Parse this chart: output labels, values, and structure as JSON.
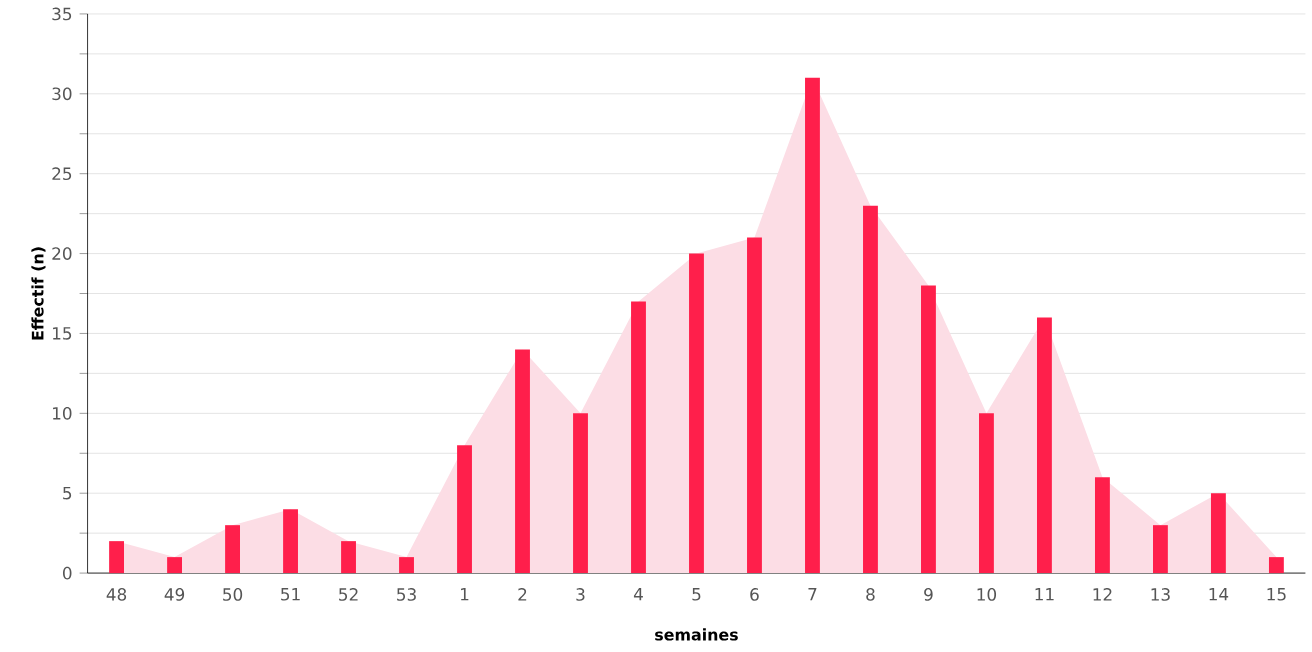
{
  "chart_data": {
    "type": "bar",
    "xlabel": "semaines",
    "ylabel": "Effectif (n)",
    "categories": [
      "48",
      "49",
      "50",
      "51",
      "52",
      "53",
      "1",
      "2",
      "3",
      "4",
      "5",
      "6",
      "7",
      "8",
      "9",
      "10",
      "11",
      "12",
      "13",
      "14",
      "15"
    ],
    "series": [
      {
        "type": "area",
        "color": "#fcdde5",
        "values": [
          2,
          1,
          3,
          4,
          2,
          1,
          8,
          14,
          10,
          17,
          20,
          21,
          31,
          23,
          18,
          10,
          16,
          6,
          3,
          5,
          1
        ]
      },
      {
        "color": "#ff1f4b",
        "values": [
          2,
          1,
          3,
          4,
          2,
          1,
          8,
          14,
          10,
          17,
          20,
          21,
          31,
          23,
          18,
          10,
          16,
          6,
          3,
          5,
          1
        ]
      }
    ],
    "ylim": [
      0,
      35
    ],
    "yticks": [
      0,
      {
        "value": 2.5,
        "label": null
      },
      5,
      {
        "value": 7.5,
        "label": null
      },
      10,
      {
        "value": 12.5,
        "label": null
      },
      15,
      {
        "value": 17.5,
        "label": null
      },
      20,
      {
        "value": 22.5,
        "label": null
      },
      25,
      {
        "value": 27.5,
        "label": null
      },
      30,
      {
        "value": 32.5,
        "label": null
      },
      35
    ],
    "grid": "y"
  }
}
